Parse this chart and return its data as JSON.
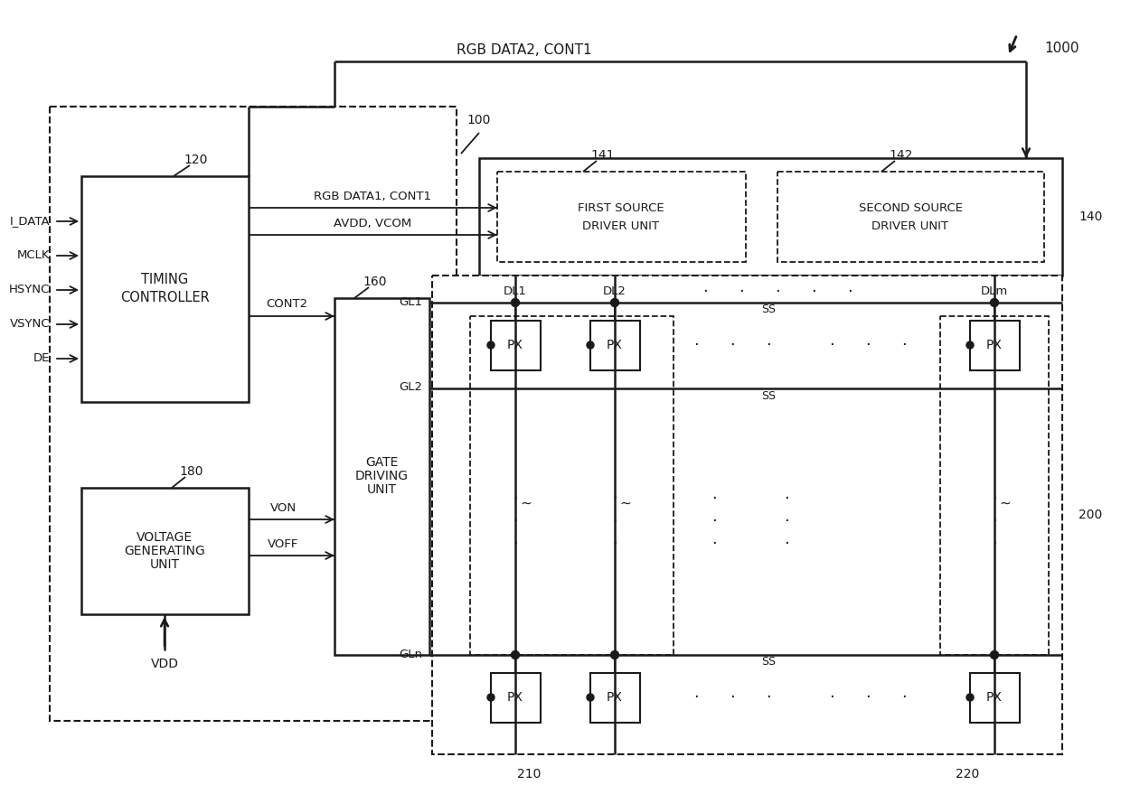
{
  "bg_color": "#ffffff",
  "lc": "#1a1a1a",
  "title_ref": "1000",
  "label_100": "100",
  "label_120": "120",
  "label_140": "140",
  "label_141": "141",
  "label_142": "142",
  "label_160": "160",
  "label_180": "180",
  "label_200": "200",
  "label_210": "210",
  "label_220": "220",
  "input_signals": [
    "I_DATA",
    "MCLK",
    "HSYNC",
    "VSYNC",
    "DE"
  ],
  "vdd_label": "VDD",
  "rgb_data2_label": "RGB DATA2, CONT1",
  "rgb_data1_label": "RGB DATA1, CONT1",
  "avdd_label": "AVDD, VCOM",
  "cont2_label": "CONT2",
  "von_label": "VON",
  "voff_label": "VOFF",
  "gate_lines": [
    "GL1",
    "GL2",
    "GLn"
  ],
  "data_lines": [
    "DL1",
    "DL2",
    "DLm"
  ],
  "timing_ctrl_text": [
    "TIMING",
    "CONTROLLER"
  ],
  "gate_driving_text": [
    "GATE",
    "DRIVING",
    "UNIT"
  ],
  "voltage_gen_text": [
    "VOLTAGE",
    "GENERATING",
    "UNIT"
  ],
  "first_source_text": [
    "FIRST SOURCE",
    "DRIVER UNIT"
  ],
  "second_source_text": [
    "SECOND SOURCE",
    "DRIVER UNIT"
  ],
  "px_label": "PX",
  "ss_label": "SS"
}
